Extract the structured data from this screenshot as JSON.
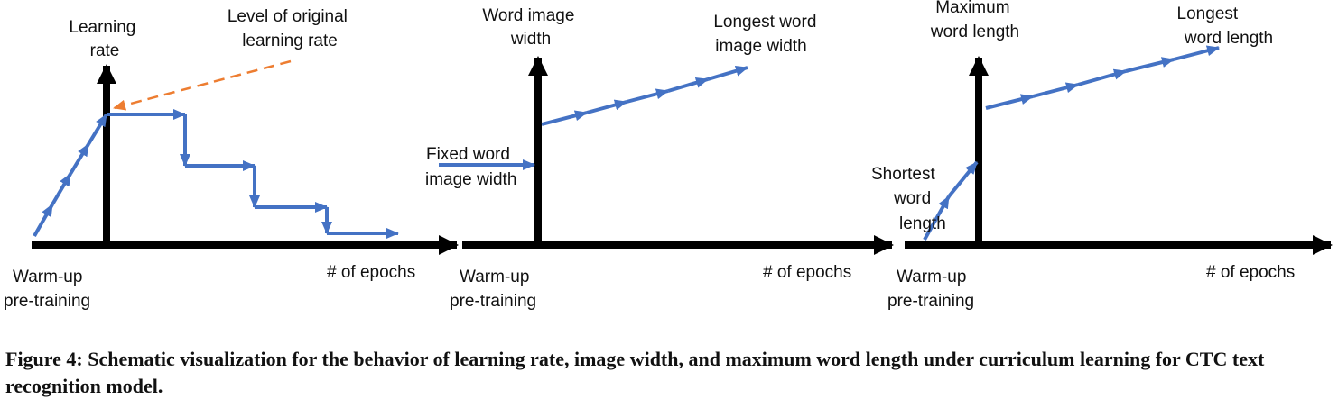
{
  "panels": [
    {
      "y_label": [
        "Learning",
        "rate"
      ],
      "x_label": "# of epochs",
      "origin_label": [
        "Warm-up",
        "pre-training"
      ],
      "annotation": [
        "Level of original",
        "learning rate"
      ]
    },
    {
      "y_label": [
        "Word image",
        "width"
      ],
      "x_label": "# of epochs",
      "origin_label": [
        "Warm-up",
        "pre-training"
      ],
      "start_label": [
        "Fixed word",
        "image width"
      ],
      "end_label": [
        "Longest word",
        "image width"
      ]
    },
    {
      "y_label": [
        "Maximum",
        "word length"
      ],
      "x_label": "# of epochs",
      "origin_label": [
        "Warm-up",
        "pre-training"
      ],
      "start_label": [
        "Shortest",
        "word",
        "length"
      ],
      "end_label": [
        "Longest",
        "word length"
      ]
    }
  ],
  "caption": "Figure 4: Schematic visualization for the behavior of learning rate, image width, and maximum word length under curriculum learning for CTC text recognition model.",
  "colors": {
    "axis": "#000000",
    "curve": "#4472c4",
    "annotation_arrow": "#ed7d31"
  }
}
